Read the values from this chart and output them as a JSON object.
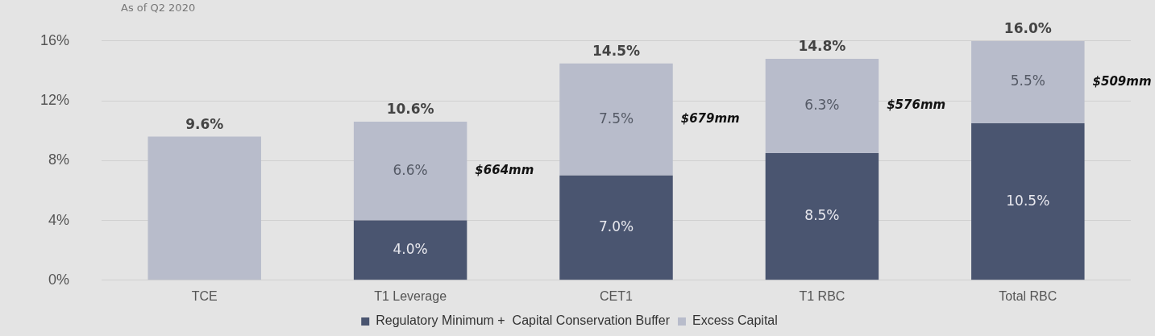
{
  "chart_data": {
    "type": "bar",
    "subtitle": "As of Q2 2020",
    "categories": [
      "TCE",
      "T1 Leverage",
      "CET1",
      "T1 RBC",
      "Total RBC"
    ],
    "stacked": true,
    "series": [
      {
        "name": "Regulatory Minimum +  Capital Conservation Buffer",
        "color": "#4a5570",
        "values": [
          null,
          4.0,
          7.0,
          8.5,
          10.5
        ],
        "value_labels": [
          null,
          "4.0%",
          "7.0%",
          "8.5%",
          "10.5%"
        ]
      },
      {
        "name": "Excess Capital",
        "color": "#b8bccb",
        "values": [
          9.6,
          6.6,
          7.5,
          6.3,
          5.5
        ],
        "value_labels": [
          null,
          "6.6%",
          "7.5%",
          "6.3%",
          "5.5%"
        ]
      }
    ],
    "totals": [
      "9.6%",
      "10.6%",
      "14.5%",
      "14.8%",
      "16.0%"
    ],
    "annotations": [
      "$664mm",
      "$679mm",
      "$576mm",
      "$509mm"
    ],
    "ylim": [
      0,
      16
    ],
    "yticks": [
      {
        "value": 0,
        "label": "0%"
      },
      {
        "value": 4,
        "label": "4%"
      },
      {
        "value": 8,
        "label": "8%"
      },
      {
        "value": 12,
        "label": "12%"
      },
      {
        "value": 16,
        "label": "16%"
      }
    ],
    "grid": "y",
    "legend": "bottom"
  }
}
